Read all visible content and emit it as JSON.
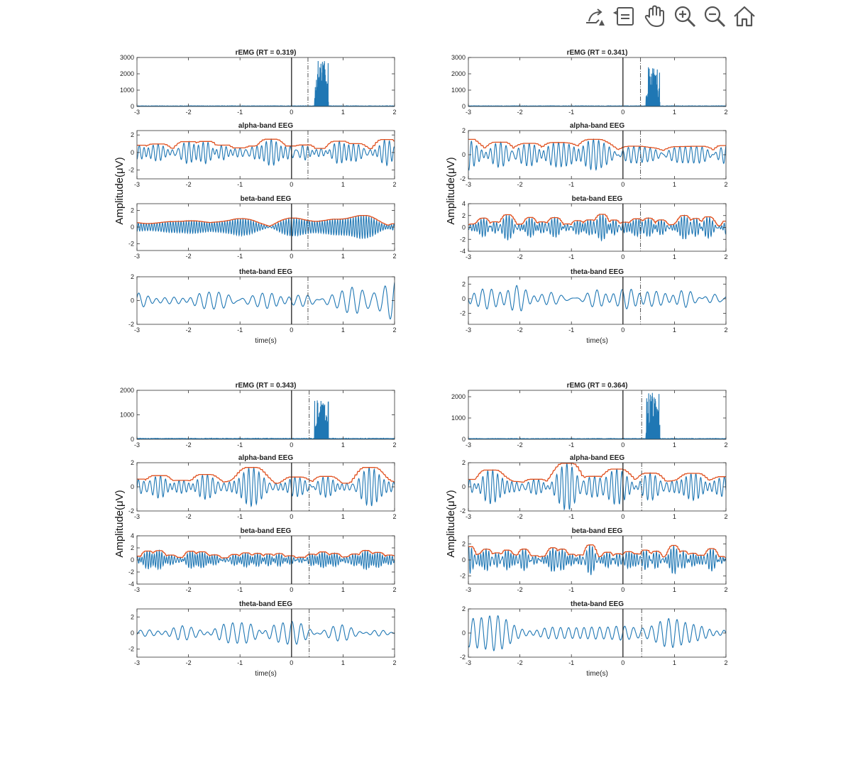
{
  "toolbar": {
    "items": [
      {
        "name": "export-icon",
        "title": "Export"
      },
      {
        "name": "data-tips-icon",
        "title": "Data Tips"
      },
      {
        "name": "pan-icon",
        "title": "Pan"
      },
      {
        "name": "zoom-in-icon",
        "title": "Zoom In"
      },
      {
        "name": "zoom-out-icon",
        "title": "Zoom Out"
      },
      {
        "name": "home-icon",
        "title": "Restore View"
      }
    ]
  },
  "figure": {
    "ylabel": "Amplitude(μV)",
    "xlabel": "time(s)",
    "series_colors": {
      "signal": "#1f77b4",
      "envelope": "#e0501f"
    }
  },
  "chart_data": [
    {
      "panel": "top-left",
      "type": "line",
      "subplots": [
        {
          "title": "rEMG (RT = 0.319)",
          "type": "line",
          "xlim": [
            -3,
            2
          ],
          "ylim": [
            0,
            3000
          ],
          "xticks": [
            -3,
            -2,
            -1,
            0,
            1,
            2
          ],
          "yticks": [
            0,
            1000,
            2000,
            3000
          ],
          "markers": [
            0,
            0.319
          ],
          "burst": {
            "start": 0.45,
            "end": 0.72,
            "peak": 2800
          }
        },
        {
          "title": "alpha-band EEG",
          "type": "line",
          "xlim": [
            -3,
            2
          ],
          "ylim": [
            -3,
            2.5
          ],
          "xticks": [
            -3,
            -2,
            -1,
            0,
            1,
            2
          ],
          "yticks": [
            -2,
            0,
            2
          ],
          "markers": [
            0,
            0.319
          ],
          "amplitude": 1.3,
          "envelope": true
        },
        {
          "title": "beta-band EEG",
          "type": "line",
          "xlim": [
            -3,
            2
          ],
          "ylim": [
            -2.8,
            2.8
          ],
          "xticks": [
            -3,
            -2,
            -1,
            0,
            1,
            2
          ],
          "yticks": [
            -2,
            0,
            2
          ],
          "markers": [
            0,
            0.319
          ],
          "amplitude": 1.2,
          "envelope": true
        },
        {
          "title": "theta-band EEG",
          "type": "line",
          "xlim": [
            -3,
            2
          ],
          "ylim": [
            -2,
            2
          ],
          "xticks": [
            -3,
            -2,
            -1,
            0,
            1,
            2
          ],
          "yticks": [
            -2,
            0,
            2
          ],
          "markers": [
            0,
            0.319
          ],
          "amplitude": 1.3,
          "envelope": false
        }
      ]
    },
    {
      "panel": "top-right",
      "type": "line",
      "subplots": [
        {
          "title": "rEMG (RT = 0.341)",
          "type": "line",
          "xlim": [
            -3,
            2
          ],
          "ylim": [
            0,
            3000
          ],
          "xticks": [
            -3,
            -2,
            -1,
            0,
            1,
            2
          ],
          "yticks": [
            0,
            1000,
            2000,
            3000
          ],
          "markers": [
            0,
            0.341
          ],
          "burst": {
            "start": 0.45,
            "end": 0.72,
            "peak": 2400
          }
        },
        {
          "title": "alpha-band EEG",
          "type": "line",
          "xlim": [
            -3,
            2
          ],
          "ylim": [
            -2,
            2
          ],
          "xticks": [
            -3,
            -2,
            -1,
            0,
            1,
            2
          ],
          "yticks": [
            -2,
            0,
            2
          ],
          "markers": [
            0,
            0.341
          ],
          "amplitude": 1.2,
          "envelope": true
        },
        {
          "title": "beta-band EEG",
          "type": "line",
          "xlim": [
            -3,
            2
          ],
          "ylim": [
            -4,
            4
          ],
          "xticks": [
            -3,
            -2,
            -1,
            0,
            1,
            2
          ],
          "yticks": [
            -4,
            -2,
            0,
            2,
            4
          ],
          "markers": [
            0,
            0.341
          ],
          "amplitude": 1.6,
          "envelope": true
        },
        {
          "title": "theta-band EEG",
          "type": "line",
          "xlim": [
            -3,
            2
          ],
          "ylim": [
            -3.5,
            3
          ],
          "xticks": [
            -3,
            -2,
            -1,
            0,
            1,
            2
          ],
          "yticks": [
            -2,
            0,
            2
          ],
          "markers": [
            0,
            0.341
          ],
          "amplitude": 1.3,
          "envelope": false
        }
      ]
    },
    {
      "panel": "bottom-left",
      "type": "line",
      "subplots": [
        {
          "title": "rEMG (RT = 0.343)",
          "type": "line",
          "xlim": [
            -3,
            2
          ],
          "ylim": [
            0,
            2000
          ],
          "xticks": [
            -3,
            -2,
            -1,
            0,
            1,
            2
          ],
          "yticks": [
            0,
            1000,
            2000
          ],
          "markers": [
            0,
            0.343
          ],
          "burst": {
            "start": 0.45,
            "end": 0.72,
            "peak": 1600
          }
        },
        {
          "title": "alpha-band EEG",
          "type": "line",
          "xlim": [
            -3,
            2
          ],
          "ylim": [
            -2,
            2
          ],
          "xticks": [
            -3,
            -2,
            -1,
            0,
            1,
            2
          ],
          "yticks": [
            -2,
            0,
            2
          ],
          "markers": [
            0,
            0.343
          ],
          "amplitude": 1.3,
          "envelope": true
        },
        {
          "title": "beta-band EEG",
          "type": "line",
          "xlim": [
            -3,
            2
          ],
          "ylim": [
            -4,
            4
          ],
          "xticks": [
            -3,
            -2,
            -1,
            0,
            1,
            2
          ],
          "yticks": [
            -4,
            -2,
            0,
            2,
            4
          ],
          "markers": [
            0,
            0.343
          ],
          "amplitude": 1.4,
          "envelope": true
        },
        {
          "title": "theta-band EEG",
          "type": "line",
          "xlim": [
            -3,
            2
          ],
          "ylim": [
            -3,
            3
          ],
          "xticks": [
            -3,
            -2,
            -1,
            0,
            1,
            2
          ],
          "yticks": [
            -2,
            0,
            2
          ],
          "markers": [
            0,
            0.343
          ],
          "amplitude": 1.4,
          "envelope": false
        }
      ]
    },
    {
      "panel": "bottom-right",
      "type": "line",
      "subplots": [
        {
          "title": "rEMG (RT = 0.364)",
          "type": "line",
          "xlim": [
            -3,
            2
          ],
          "ylim": [
            0,
            2300
          ],
          "xticks": [
            -3,
            -2,
            -1,
            0,
            1,
            2
          ],
          "yticks": [
            0,
            1000,
            2000
          ],
          "markers": [
            0,
            0.364
          ],
          "burst": {
            "start": 0.45,
            "end": 0.72,
            "peak": 2200
          }
        },
        {
          "title": "alpha-band EEG",
          "type": "line",
          "xlim": [
            -3,
            2
          ],
          "ylim": [
            -2,
            2
          ],
          "xticks": [
            -3,
            -2,
            -1,
            0,
            1,
            2
          ],
          "yticks": [
            -2,
            0,
            2
          ],
          "markers": [
            0,
            0.364
          ],
          "amplitude": 1.2,
          "envelope": true
        },
        {
          "title": "beta-band EEG",
          "type": "line",
          "xlim": [
            -3,
            2
          ],
          "ylim": [
            -3,
            3
          ],
          "xticks": [
            -3,
            -2,
            -1,
            0,
            1,
            2
          ],
          "yticks": [
            -2,
            0,
            2
          ],
          "markers": [
            0,
            0.364
          ],
          "amplitude": 1.3,
          "envelope": true
        },
        {
          "title": "theta-band EEG",
          "type": "line",
          "xlim": [
            -3,
            2
          ],
          "ylim": [
            -2,
            2
          ],
          "xticks": [
            -3,
            -2,
            -1,
            0,
            1,
            2
          ],
          "yticks": [
            -2,
            0,
            2
          ],
          "markers": [
            0,
            0.364
          ],
          "amplitude": 1.2,
          "envelope": false
        }
      ]
    }
  ]
}
